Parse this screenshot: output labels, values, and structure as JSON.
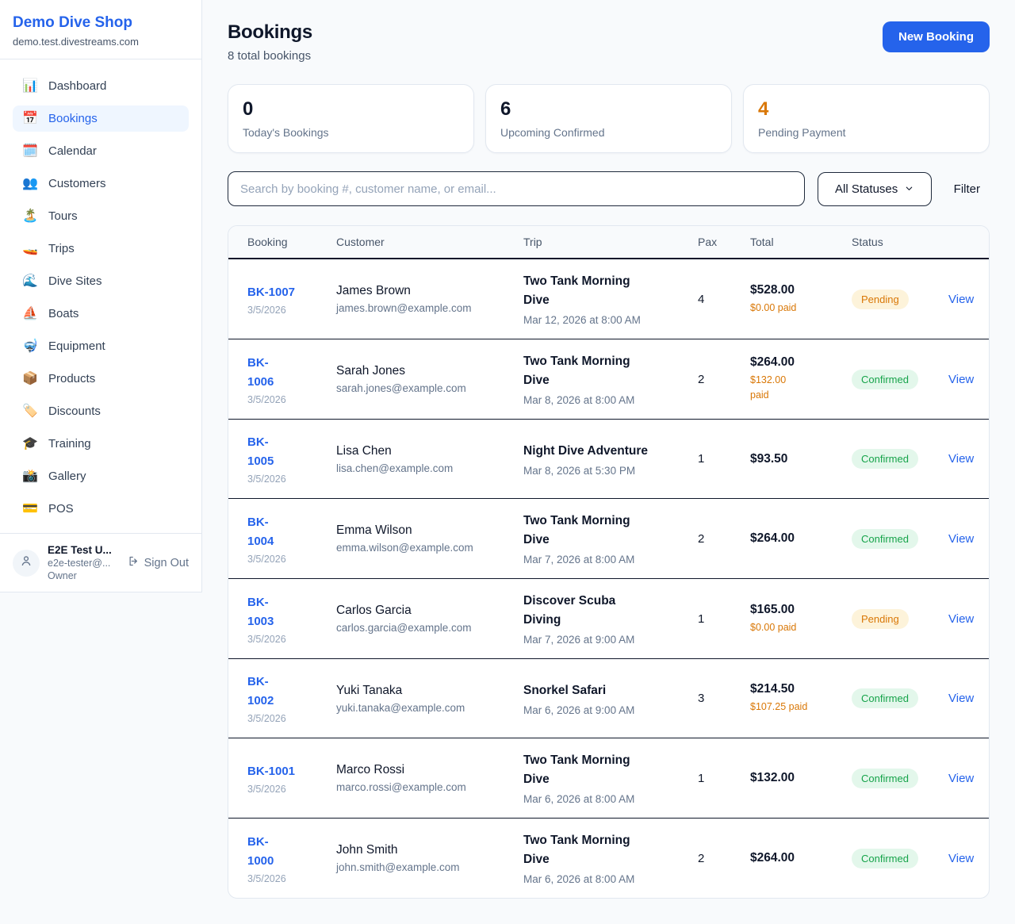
{
  "sidebar": {
    "brand": {
      "name": "Demo Dive Shop",
      "domain": "demo.test.divestreams.com"
    },
    "nav": [
      {
        "key": "dashboard",
        "label": "Dashboard",
        "icon": "📊",
        "icon_name": "bar-chart-icon",
        "active": false
      },
      {
        "key": "bookings",
        "label": "Bookings",
        "icon": "📅",
        "icon_name": "calendar-icon",
        "active": true
      },
      {
        "key": "calendar",
        "label": "Calendar",
        "icon": "🗓️",
        "icon_name": "spiral-calendar-icon",
        "active": false
      },
      {
        "key": "customers",
        "label": "Customers",
        "icon": "👥",
        "icon_name": "people-icon",
        "active": false
      },
      {
        "key": "tours",
        "label": "Tours",
        "icon": "🏝️",
        "icon_name": "island-icon",
        "active": false
      },
      {
        "key": "trips",
        "label": "Trips",
        "icon": "🚤",
        "icon_name": "speedboat-icon",
        "active": false
      },
      {
        "key": "dive-sites",
        "label": "Dive Sites",
        "icon": "🌊",
        "icon_name": "wave-icon",
        "active": false
      },
      {
        "key": "boats",
        "label": "Boats",
        "icon": "⛵",
        "icon_name": "sailboat-icon",
        "active": false
      },
      {
        "key": "equipment",
        "label": "Equipment",
        "icon": "🤿",
        "icon_name": "diving-mask-icon",
        "active": false
      },
      {
        "key": "products",
        "label": "Products",
        "icon": "📦",
        "icon_name": "package-icon",
        "active": false
      },
      {
        "key": "discounts",
        "label": "Discounts",
        "icon": "🏷️",
        "icon_name": "label-tag-icon",
        "active": false
      },
      {
        "key": "training",
        "label": "Training",
        "icon": "🎓",
        "icon_name": "graduation-cap-icon",
        "active": false
      },
      {
        "key": "gallery",
        "label": "Gallery",
        "icon": "📸",
        "icon_name": "camera-icon",
        "active": false
      },
      {
        "key": "pos",
        "label": "POS",
        "icon": "💳",
        "icon_name": "credit-card-icon",
        "active": false
      }
    ],
    "user": {
      "name": "E2E Test U...",
      "email": "e2e-tester@...",
      "role": "Owner",
      "sign_out_label": "Sign Out"
    }
  },
  "header": {
    "title": "Bookings",
    "subtitle": "8 total bookings",
    "new_booking_label": "New Booking"
  },
  "stats": [
    {
      "value": "0",
      "label": "Today's Bookings",
      "highlight": false
    },
    {
      "value": "6",
      "label": "Upcoming Confirmed",
      "highlight": false
    },
    {
      "value": "4",
      "label": "Pending Payment",
      "highlight": true
    }
  ],
  "filters": {
    "search_placeholder": "Search by booking #, customer name, or email...",
    "status_selected": "All Statuses",
    "filter_label": "Filter"
  },
  "table": {
    "columns": [
      "Booking",
      "Customer",
      "Trip",
      "Pax",
      "Total",
      "Status"
    ],
    "view_label": "View",
    "rows": [
      {
        "id": "BK-1007",
        "date": "3/5/2026",
        "customer": "James Brown",
        "email": "james.brown@example.com",
        "trip": "Two Tank Morning\nDive",
        "trip_time": "Mar 12, 2026 at 8:00 AM",
        "pax": "4",
        "total": "$528.00",
        "paid": "$0.00 paid",
        "status": "Pending"
      },
      {
        "id": "BK-\n1006",
        "date": "3/5/2026",
        "customer": "Sarah Jones",
        "email": "sarah.jones@example.com",
        "trip": "Two Tank Morning\nDive",
        "trip_time": "Mar 8, 2026 at 8:00 AM",
        "pax": "2",
        "total": "$264.00",
        "paid": "$132.00\npaid",
        "status": "Confirmed"
      },
      {
        "id": "BK-\n1005",
        "date": "3/5/2026",
        "customer": "Lisa Chen",
        "email": "lisa.chen@example.com",
        "trip": "Night Dive Adventure",
        "trip_time": "Mar 8, 2026 at 5:30 PM",
        "pax": "1",
        "total": "$93.50",
        "paid": "",
        "status": "Confirmed"
      },
      {
        "id": "BK-\n1004",
        "date": "3/5/2026",
        "customer": "Emma Wilson",
        "email": "emma.wilson@example.com",
        "trip": "Two Tank Morning\nDive",
        "trip_time": "Mar 7, 2026 at 8:00 AM",
        "pax": "2",
        "total": "$264.00",
        "paid": "",
        "status": "Confirmed"
      },
      {
        "id": "BK-\n1003",
        "date": "3/5/2026",
        "customer": "Carlos Garcia",
        "email": "carlos.garcia@example.com",
        "trip": "Discover Scuba\nDiving",
        "trip_time": "Mar 7, 2026 at 9:00 AM",
        "pax": "1",
        "total": "$165.00",
        "paid": "$0.00 paid",
        "status": "Pending"
      },
      {
        "id": "BK-\n1002",
        "date": "3/5/2026",
        "customer": "Yuki Tanaka",
        "email": "yuki.tanaka@example.com",
        "trip": "Snorkel Safari",
        "trip_time": "Mar 6, 2026 at 9:00 AM",
        "pax": "3",
        "total": "$214.50",
        "paid": "$107.25 paid",
        "status": "Confirmed"
      },
      {
        "id": "BK-1001",
        "date": "3/5/2026",
        "customer": "Marco Rossi",
        "email": "marco.rossi@example.com",
        "trip": "Two Tank Morning\nDive",
        "trip_time": "Mar 6, 2026 at 8:00 AM",
        "pax": "1",
        "total": "$132.00",
        "paid": "",
        "status": "Confirmed"
      },
      {
        "id": "BK-\n1000",
        "date": "3/5/2026",
        "customer": "John Smith",
        "email": "john.smith@example.com",
        "trip": "Two Tank Morning\nDive",
        "trip_time": "Mar 6, 2026 at 8:00 AM",
        "pax": "2",
        "total": "$264.00",
        "paid": "",
        "status": "Confirmed"
      }
    ]
  },
  "colors": {
    "accent_blue": "#2563eb",
    "pending_text": "#d97706",
    "pending_bg": "#fdf3da",
    "confirmed_text": "#16a34a",
    "confirmed_bg": "#e3f7eb",
    "dark_border": "#0f172a",
    "page_bg": "#f8fafc"
  }
}
